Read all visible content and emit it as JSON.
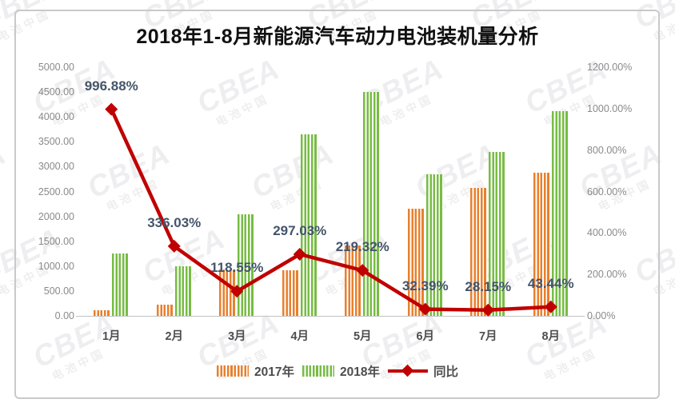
{
  "title": "2018年1-8月新能源汽车动力电池装机量分析",
  "watermark": {
    "brand": "CBEA",
    "subtext": "电池中国"
  },
  "colors": {
    "bar2017": "#E8802E",
    "bar2018": "#77BC44",
    "line": "#C00000",
    "data_label": "#44546A",
    "axis_text": "#8A8A8A",
    "frame_border": "#C9C9C9",
    "axis_line": "#C2C2C2",
    "title_text": "#111111"
  },
  "axis": {
    "left_ticks": [
      "5000.00",
      "4500.00",
      "4000.00",
      "3500.00",
      "3000.00",
      "2500.00",
      "2000.00",
      "1500.00",
      "1000.00",
      "500.00",
      "0.00"
    ],
    "right_ticks": [
      "1200.00%",
      "1000.00%",
      "800.00%",
      "600.00%",
      "400.00%",
      "200.00%",
      "0.00%"
    ]
  },
  "legend": {
    "items": [
      {
        "label": "2017年",
        "kind": "bar",
        "color": "#E8802E"
      },
      {
        "label": "2018年",
        "kind": "bar",
        "color": "#77BC44"
      },
      {
        "label": "同比",
        "kind": "line",
        "color": "#C00000"
      }
    ]
  },
  "chart_data": {
    "type": "combo-bar-line",
    "title": "2018年1-8月新能源汽车动力电池装机量分析",
    "categories": [
      "1月",
      "2月",
      "3月",
      "4月",
      "5月",
      "6月",
      "7月",
      "8月"
    ],
    "series": [
      {
        "name": "2017年",
        "type": "bar",
        "axis": "left",
        "color": "#E8802E",
        "pattern": "vertical-stripes",
        "values": [
          115,
          230,
          935,
          920,
          1410,
          2150,
          2570,
          2870
        ]
      },
      {
        "name": "2018年",
        "type": "bar",
        "axis": "left",
        "color": "#77BC44",
        "pattern": "vertical-stripes",
        "values": [
          1261,
          1003,
          2043,
          3653,
          4502,
          2846,
          3293,
          4117
        ]
      },
      {
        "name": "同比",
        "type": "line",
        "axis": "right",
        "color": "#C00000",
        "marker": "diamond",
        "values_percent": [
          996.88,
          336.03,
          118.55,
          297.03,
          219.32,
          32.39,
          28.15,
          43.44
        ],
        "labels": [
          "996.88%",
          "336.03%",
          "118.55%",
          "297.03%",
          "219.32%",
          "32.39%",
          "28.15%",
          "43.44%"
        ]
      }
    ],
    "left_axis": {
      "min": 0,
      "max": 5000,
      "step": 500
    },
    "right_axis": {
      "min": 0,
      "max": 1200,
      "step": 200,
      "unit": "%"
    },
    "grid": false,
    "legend_position": "bottom"
  }
}
